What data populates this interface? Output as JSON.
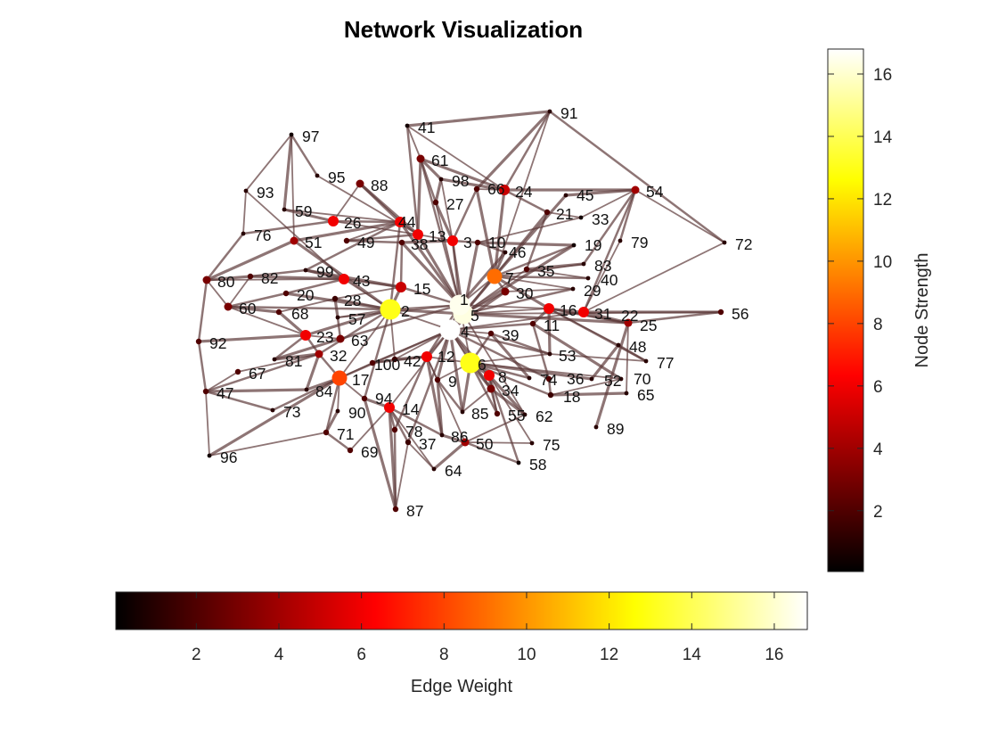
{
  "figure": {
    "title": "Network Visualization",
    "colormap": "hot",
    "edge_color": "#5e3b3b"
  },
  "colorbar_right": {
    "label": "Node Strength",
    "ticks": [
      2,
      4,
      6,
      8,
      10,
      12,
      14,
      16
    ],
    "range": [
      0.05,
      16.8
    ]
  },
  "colorbar_bottom": {
    "label": "Edge Weight",
    "ticks": [
      2,
      4,
      6,
      8,
      10,
      12,
      14,
      16
    ],
    "range": [
      0.05,
      16.8
    ]
  },
  "nodes": [
    {
      "id": "1",
      "s": 16.5
    },
    {
      "id": "2",
      "s": 13
    },
    {
      "id": "3",
      "s": 6
    },
    {
      "id": "4",
      "s": 16.8
    },
    {
      "id": "5",
      "s": 16.3
    },
    {
      "id": "6",
      "s": 13
    },
    {
      "id": "7",
      "s": 9
    },
    {
      "id": "8",
      "s": 6
    },
    {
      "id": "9",
      "s": 2
    },
    {
      "id": "10",
      "s": 2
    },
    {
      "id": "11",
      "s": 2
    },
    {
      "id": "12",
      "s": 6
    },
    {
      "id": "13",
      "s": 6
    },
    {
      "id": "14",
      "s": 6
    },
    {
      "id": "15",
      "s": 5
    },
    {
      "id": "16",
      "s": 6
    },
    {
      "id": "17",
      "s": 8
    },
    {
      "id": "18",
      "s": 1.5
    },
    {
      "id": "19",
      "s": 0.5
    },
    {
      "id": "20",
      "s": 2
    },
    {
      "id": "21",
      "s": 2
    },
    {
      "id": "22",
      "s": 4
    },
    {
      "id": "23",
      "s": 6
    },
    {
      "id": "24",
      "s": 5
    },
    {
      "id": "25",
      "s": 2
    },
    {
      "id": "26",
      "s": 6
    },
    {
      "id": "27",
      "s": 2
    },
    {
      "id": "28",
      "s": 1.5
    },
    {
      "id": "29",
      "s": 1
    },
    {
      "id": "30",
      "s": 3
    },
    {
      "id": "31",
      "s": 6
    },
    {
      "id": "32",
      "s": 4
    },
    {
      "id": "33",
      "s": 0.5
    },
    {
      "id": "34",
      "s": 3
    },
    {
      "id": "35",
      "s": 2
    },
    {
      "id": "36",
      "s": 2
    },
    {
      "id": "37",
      "s": 1.5
    },
    {
      "id": "38",
      "s": 2
    },
    {
      "id": "39",
      "s": 2
    },
    {
      "id": "40",
      "s": 1
    },
    {
      "id": "41",
      "s": 0.5
    },
    {
      "id": "42",
      "s": 1.5
    },
    {
      "id": "43",
      "s": 6
    },
    {
      "id": "44",
      "s": 6
    },
    {
      "id": "45",
      "s": 1
    },
    {
      "id": "46",
      "s": 1
    },
    {
      "id": "47",
      "s": 2
    },
    {
      "id": "48",
      "s": 1
    },
    {
      "id": "49",
      "s": 2
    },
    {
      "id": "50",
      "s": 4
    },
    {
      "id": "51",
      "s": 4
    },
    {
      "id": "52",
      "s": 1
    },
    {
      "id": "53",
      "s": 1
    },
    {
      "id": "54",
      "s": 4
    },
    {
      "id": "55",
      "s": 2
    },
    {
      "id": "56",
      "s": 2
    },
    {
      "id": "57",
      "s": 1
    },
    {
      "id": "58",
      "s": 0.5
    },
    {
      "id": "59",
      "s": 1
    },
    {
      "id": "60",
      "s": 3
    },
    {
      "id": "61",
      "s": 3
    },
    {
      "id": "62",
      "s": 1
    },
    {
      "id": "63",
      "s": 3
    },
    {
      "id": "64",
      "s": 1
    },
    {
      "id": "65",
      "s": 1
    },
    {
      "id": "66",
      "s": 2
    },
    {
      "id": "67",
      "s": 2
    },
    {
      "id": "68",
      "s": 2
    },
    {
      "id": "69",
      "s": 2
    },
    {
      "id": "70",
      "s": 1
    },
    {
      "id": "71",
      "s": 2
    },
    {
      "id": "72",
      "s": 1
    },
    {
      "id": "73",
      "s": 1
    },
    {
      "id": "74",
      "s": 1
    },
    {
      "id": "75",
      "s": 1
    },
    {
      "id": "76",
      "s": 1
    },
    {
      "id": "77",
      "s": 1
    },
    {
      "id": "78",
      "s": 2
    },
    {
      "id": "79",
      "s": 1
    },
    {
      "id": "80",
      "s": 3
    },
    {
      "id": "81",
      "s": 1
    },
    {
      "id": "82",
      "s": 2
    },
    {
      "id": "83",
      "s": 1
    },
    {
      "id": "84",
      "s": 1
    },
    {
      "id": "85",
      "s": 1
    },
    {
      "id": "86",
      "s": 1
    },
    {
      "id": "87",
      "s": 2
    },
    {
      "id": "88",
      "s": 3
    },
    {
      "id": "89",
      "s": 1
    },
    {
      "id": "90",
      "s": 1
    },
    {
      "id": "91",
      "s": 1
    },
    {
      "id": "92",
      "s": 2
    },
    {
      "id": "93",
      "s": 1
    },
    {
      "id": "94",
      "s": 2
    },
    {
      "id": "95",
      "s": 1
    },
    {
      "id": "96",
      "s": 0.5
    },
    {
      "id": "97",
      "s": 0.5
    },
    {
      "id": "98",
      "s": 1
    },
    {
      "id": "99",
      "s": 1
    },
    {
      "id": "100",
      "s": 2
    }
  ],
  "edges": [
    [
      "1",
      "2"
    ],
    [
      "1",
      "4"
    ],
    [
      "1",
      "5"
    ],
    [
      "1",
      "6"
    ],
    [
      "1",
      "15"
    ],
    [
      "1",
      "13"
    ],
    [
      "1",
      "7"
    ],
    [
      "1",
      "12"
    ],
    [
      "1",
      "38"
    ],
    [
      "1",
      "27"
    ],
    [
      "1",
      "3"
    ],
    [
      "1",
      "46"
    ],
    [
      "1",
      "16"
    ],
    [
      "1",
      "61"
    ],
    [
      "1",
      "44"
    ],
    [
      "1",
      "57"
    ],
    [
      "1",
      "63"
    ],
    [
      "2",
      "15"
    ],
    [
      "2",
      "43"
    ],
    [
      "2",
      "28"
    ],
    [
      "2",
      "23"
    ],
    [
      "2",
      "57"
    ],
    [
      "2",
      "44"
    ],
    [
      "2",
      "20"
    ],
    [
      "2",
      "17"
    ],
    [
      "2",
      "94"
    ],
    [
      "2",
      "5"
    ],
    [
      "2",
      "4"
    ],
    [
      "2",
      "60"
    ],
    [
      "2",
      "51"
    ],
    [
      "2",
      "42"
    ],
    [
      "2",
      "32"
    ],
    [
      "4",
      "5"
    ],
    [
      "4",
      "6"
    ],
    [
      "4",
      "12"
    ],
    [
      "4",
      "9"
    ],
    [
      "4",
      "39"
    ],
    [
      "4",
      "11"
    ],
    [
      "4",
      "8"
    ],
    [
      "4",
      "14"
    ],
    [
      "4",
      "17"
    ],
    [
      "4",
      "30"
    ],
    [
      "4",
      "31"
    ],
    [
      "4",
      "36"
    ],
    [
      "4",
      "34"
    ],
    [
      "4",
      "100"
    ],
    [
      "4",
      "53"
    ],
    [
      "4",
      "85"
    ],
    [
      "4",
      "42"
    ],
    [
      "4",
      "37"
    ],
    [
      "5",
      "7"
    ],
    [
      "5",
      "16"
    ],
    [
      "5",
      "3"
    ],
    [
      "5",
      "10"
    ],
    [
      "5",
      "35"
    ],
    [
      "5",
      "21"
    ],
    [
      "5",
      "22"
    ],
    [
      "5",
      "56"
    ],
    [
      "5",
      "30"
    ],
    [
      "5",
      "19"
    ],
    [
      "5",
      "62"
    ],
    [
      "5",
      "29"
    ],
    [
      "6",
      "8"
    ],
    [
      "6",
      "12"
    ],
    [
      "6",
      "74"
    ],
    [
      "6",
      "34"
    ],
    [
      "6",
      "9"
    ],
    [
      "6",
      "39"
    ],
    [
      "6",
      "52"
    ],
    [
      "6",
      "70"
    ],
    [
      "6",
      "55"
    ],
    [
      "6",
      "85"
    ],
    [
      "6",
      "53"
    ],
    [
      "6",
      "18"
    ],
    [
      "7",
      "24"
    ],
    [
      "7",
      "46"
    ],
    [
      "7",
      "30"
    ],
    [
      "7",
      "16"
    ],
    [
      "7",
      "83"
    ],
    [
      "7",
      "40"
    ],
    [
      "7",
      "45"
    ],
    [
      "7",
      "29"
    ],
    [
      "7",
      "19"
    ],
    [
      "7",
      "66"
    ],
    [
      "3",
      "13"
    ],
    [
      "3",
      "10"
    ],
    [
      "3",
      "27"
    ],
    [
      "3",
      "98"
    ],
    [
      "3",
      "66"
    ],
    [
      "3",
      "38"
    ],
    [
      "13",
      "44"
    ],
    [
      "13",
      "41"
    ],
    [
      "13",
      "61"
    ],
    [
      "13",
      "26"
    ],
    [
      "13",
      "49"
    ],
    [
      "13",
      "88"
    ],
    [
      "13",
      "95"
    ],
    [
      "44",
      "26"
    ],
    [
      "44",
      "51"
    ],
    [
      "44",
      "49"
    ],
    [
      "44",
      "99"
    ],
    [
      "44",
      "88"
    ],
    [
      "44",
      "59"
    ],
    [
      "15",
      "43"
    ],
    [
      "15",
      "99"
    ],
    [
      "15",
      "28"
    ],
    [
      "15",
      "38"
    ],
    [
      "43",
      "82"
    ],
    [
      "43",
      "80"
    ],
    [
      "43",
      "20"
    ],
    [
      "43",
      "99"
    ],
    [
      "43",
      "93"
    ],
    [
      "23",
      "32"
    ],
    [
      "23",
      "68"
    ],
    [
      "23",
      "60"
    ],
    [
      "23",
      "81"
    ],
    [
      "23",
      "92"
    ],
    [
      "23",
      "63"
    ],
    [
      "32",
      "17"
    ],
    [
      "32",
      "84"
    ],
    [
      "32",
      "67"
    ],
    [
      "32",
      "47"
    ],
    [
      "32",
      "81"
    ],
    [
      "17",
      "94"
    ],
    [
      "17",
      "71"
    ],
    [
      "17",
      "84"
    ],
    [
      "17",
      "90"
    ],
    [
      "17",
      "73"
    ],
    [
      "17",
      "96"
    ],
    [
      "17",
      "100"
    ],
    [
      "14",
      "78"
    ],
    [
      "14",
      "94"
    ],
    [
      "14",
      "69"
    ],
    [
      "14",
      "37"
    ],
    [
      "14",
      "87"
    ],
    [
      "14",
      "64"
    ],
    [
      "14",
      "86"
    ],
    [
      "12",
      "42"
    ],
    [
      "12",
      "9"
    ],
    [
      "12",
      "100"
    ],
    [
      "12",
      "86"
    ],
    [
      "12",
      "50"
    ],
    [
      "12",
      "78"
    ],
    [
      "8",
      "34"
    ],
    [
      "8",
      "75"
    ],
    [
      "8",
      "58"
    ],
    [
      "8",
      "62"
    ],
    [
      "8",
      "55"
    ],
    [
      "16",
      "31"
    ],
    [
      "16",
      "11"
    ],
    [
      "16",
      "22"
    ],
    [
      "16",
      "25"
    ],
    [
      "16",
      "53"
    ],
    [
      "16",
      "48"
    ],
    [
      "16",
      "77"
    ],
    [
      "31",
      "22"
    ],
    [
      "31",
      "72"
    ],
    [
      "31",
      "54"
    ],
    [
      "31",
      "56"
    ],
    [
      "31",
      "79"
    ],
    [
      "22",
      "25"
    ],
    [
      "22",
      "89"
    ],
    [
      "22",
      "65"
    ],
    [
      "22",
      "56"
    ],
    [
      "24",
      "54"
    ],
    [
      "24",
      "66"
    ],
    [
      "24",
      "91"
    ],
    [
      "24",
      "98"
    ],
    [
      "24",
      "41"
    ],
    [
      "24",
      "21"
    ],
    [
      "24",
      "61"
    ],
    [
      "54",
      "72"
    ],
    [
      "54",
      "79"
    ],
    [
      "54",
      "45"
    ],
    [
      "54",
      "33"
    ],
    [
      "54",
      "83"
    ],
    [
      "91",
      "41"
    ],
    [
      "91",
      "7"
    ],
    [
      "91",
      "72"
    ],
    [
      "91",
      "66"
    ],
    [
      "97",
      "93"
    ],
    [
      "97",
      "95"
    ],
    [
      "97",
      "59"
    ],
    [
      "97",
      "51"
    ],
    [
      "80",
      "92"
    ],
    [
      "80",
      "82"
    ],
    [
      "80",
      "60"
    ],
    [
      "80",
      "76"
    ],
    [
      "80",
      "51"
    ],
    [
      "47",
      "67"
    ],
    [
      "47",
      "92"
    ],
    [
      "47",
      "84"
    ],
    [
      "47",
      "96"
    ],
    [
      "47",
      "73"
    ],
    [
      "50",
      "86"
    ],
    [
      "50",
      "75"
    ],
    [
      "50",
      "58"
    ],
    [
      "50",
      "64"
    ],
    [
      "50",
      "62"
    ],
    [
      "18",
      "36"
    ],
    [
      "18",
      "65"
    ],
    [
      "18",
      "70"
    ],
    [
      "26",
      "76"
    ],
    [
      "26",
      "59"
    ],
    [
      "26",
      "88"
    ],
    [
      "60",
      "20"
    ],
    [
      "60",
      "68"
    ],
    [
      "60",
      "82"
    ],
    [
      "61",
      "27"
    ],
    [
      "61",
      "98"
    ],
    [
      "61",
      "41"
    ],
    [
      "35",
      "21"
    ],
    [
      "35",
      "83"
    ],
    [
      "35",
      "40"
    ],
    [
      "34",
      "55"
    ],
    [
      "34",
      "62"
    ],
    [
      "34",
      "85"
    ],
    [
      "71",
      "69"
    ],
    [
      "71",
      "90"
    ],
    [
      "71",
      "96"
    ],
    [
      "87",
      "78"
    ],
    [
      "87",
      "94"
    ],
    [
      "87",
      "37"
    ],
    [
      "57",
      "63"
    ],
    [
      "57",
      "28"
    ],
    [
      "28",
      "68"
    ],
    [
      "48",
      "77"
    ],
    [
      "48",
      "52"
    ],
    [
      "77",
      "53"
    ],
    [
      "10",
      "46"
    ],
    [
      "10",
      "19"
    ],
    [
      "10",
      "33"
    ],
    [
      "9",
      "85"
    ],
    [
      "9",
      "86"
    ],
    [
      "64",
      "37"
    ],
    [
      "11",
      "36"
    ],
    [
      "11",
      "70"
    ],
    [
      "30",
      "29"
    ],
    [
      "38",
      "49"
    ],
    [
      "27",
      "98"
    ],
    [
      "21",
      "33"
    ],
    [
      "39",
      "53"
    ],
    [
      "39",
      "74"
    ],
    [
      "42",
      "100"
    ],
    [
      "99",
      "82"
    ],
    [
      "63",
      "81"
    ],
    [
      "76",
      "93"
    ]
  ]
}
